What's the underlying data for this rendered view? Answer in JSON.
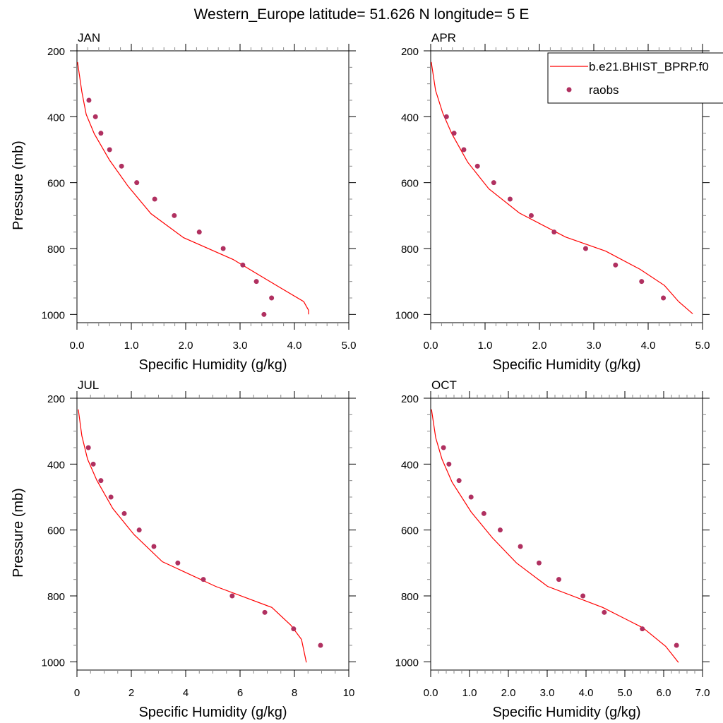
{
  "title": "Western_Europe  latitude= 51.626 N longitude= 5 E",
  "colors": {
    "model_line": "#ff0000",
    "obs_marker": "#b03060"
  },
  "legend": {
    "placement": "top-right",
    "entries": [
      {
        "label": "b.e21.BHIST_BPRP.f0",
        "style": "line"
      },
      {
        "label": "raobs",
        "style": "marker"
      }
    ]
  },
  "chart_data": [
    {
      "type": "line",
      "panel_label": "JAN",
      "xlabel": "Specific Humidity (g/kg)",
      "ylabel": "Pressure (mb)",
      "xlim": [
        0,
        5
      ],
      "ylim": [
        200,
        1025
      ],
      "y_inverted": true,
      "xticks": [
        "0.0",
        "1.0",
        "2.0",
        "3.0",
        "4.0",
        "5.0"
      ],
      "xtick_values": [
        0,
        1,
        2,
        3,
        4,
        5
      ],
      "xminor": 0.2,
      "yticks": [
        "200",
        "400",
        "600",
        "800",
        "1000"
      ],
      "ytick_values": [
        200,
        400,
        600,
        800,
        1000
      ],
      "yminor": 50,
      "series": [
        {
          "name": "b.e21.BHIST_BPRP.f0",
          "kind": "line",
          "x": [
            0.01,
            0.09,
            0.17,
            0.32,
            0.6,
            0.94,
            1.36,
            1.96,
            2.87,
            3.74,
            4.17,
            4.26,
            4.26
          ],
          "y": [
            234,
            324,
            393,
            452,
            532,
            611,
            694,
            767,
            833,
            919,
            961,
            987,
            1000
          ]
        },
        {
          "name": "raobs",
          "kind": "scatter",
          "x": [
            0.22,
            0.34,
            0.44,
            0.6,
            0.82,
            1.1,
            1.43,
            1.79,
            2.25,
            2.69,
            3.05,
            3.3,
            3.58,
            3.44
          ],
          "y": [
            350,
            400,
            450,
            500,
            550,
            600,
            650,
            700,
            750,
            800,
            850,
            900,
            950,
            1000
          ]
        }
      ]
    },
    {
      "type": "line",
      "panel_label": "APR",
      "xlabel": "Specific Humidity (g/kg)",
      "ylabel": "",
      "xlim": [
        0,
        5
      ],
      "ylim": [
        200,
        1025
      ],
      "y_inverted": true,
      "xticks": [
        "0.0",
        "1.0",
        "2.0",
        "3.0",
        "4.0",
        "5.0"
      ],
      "xtick_values": [
        0,
        1,
        2,
        3,
        4,
        5
      ],
      "xminor": 0.2,
      "yticks": [
        "200",
        "400",
        "600",
        "800",
        "1000"
      ],
      "ytick_values": [
        200,
        400,
        600,
        800,
        1000
      ],
      "yminor": 50,
      "series": [
        {
          "name": "b.e21.BHIST_BPRP.f0",
          "kind": "line",
          "x": [
            0.01,
            0.09,
            0.22,
            0.39,
            0.68,
            1.07,
            1.63,
            2.48,
            3.22,
            3.85,
            4.3,
            4.56,
            4.82
          ],
          "y": [
            234,
            320,
            388,
            452,
            538,
            619,
            692,
            765,
            808,
            863,
            912,
            961,
            998
          ]
        },
        {
          "name": "raobs",
          "kind": "scatter",
          "x": [
            0.29,
            0.43,
            0.61,
            0.86,
            1.16,
            1.46,
            1.85,
            2.27,
            2.85,
            3.4,
            3.88,
            4.28
          ],
          "y": [
            400,
            450,
            500,
            550,
            600,
            650,
            700,
            750,
            800,
            850,
            900,
            950
          ]
        }
      ]
    },
    {
      "type": "line",
      "panel_label": "JUL",
      "xlabel": "Specific Humidity (g/kg)",
      "ylabel": "Pressure (mb)",
      "xlim": [
        0,
        10
      ],
      "ylim": [
        200,
        1025
      ],
      "y_inverted": true,
      "xticks": [
        "0",
        "2",
        "4",
        "6",
        "8",
        "10"
      ],
      "xtick_values": [
        0,
        2,
        4,
        6,
        8,
        10
      ],
      "xminor": 0.5,
      "yticks": [
        "200",
        "400",
        "600",
        "800",
        "1000"
      ],
      "ytick_values": [
        200,
        400,
        600,
        800,
        1000
      ],
      "yminor": 50,
      "series": [
        {
          "name": "b.e21.BHIST_BPRP.f0",
          "kind": "line",
          "x": [
            0.05,
            0.18,
            0.39,
            0.73,
            1.32,
            2.1,
            3.14,
            5.1,
            7.17,
            7.87,
            8.26,
            8.44
          ],
          "y": [
            234,
            314,
            385,
            449,
            535,
            614,
            696,
            771,
            835,
            889,
            932,
            1002
          ]
        },
        {
          "name": "raobs",
          "kind": "scatter",
          "x": [
            0.42,
            0.6,
            0.88,
            1.25,
            1.74,
            2.29,
            2.83,
            3.71,
            4.65,
            5.71,
            6.91,
            7.97,
            8.96
          ],
          "y": [
            350,
            400,
            450,
            500,
            550,
            600,
            650,
            700,
            750,
            800,
            850,
            900,
            950
          ]
        }
      ]
    },
    {
      "type": "line",
      "panel_label": "OCT",
      "xlabel": "Specific Humidity (g/kg)",
      "ylabel": "",
      "xlim": [
        0,
        7
      ],
      "ylim": [
        200,
        1025
      ],
      "y_inverted": true,
      "xticks": [
        "0.0",
        "1.0",
        "2.0",
        "3.0",
        "4.0",
        "5.0",
        "6.0",
        "7.0"
      ],
      "xtick_values": [
        0,
        1,
        2,
        3,
        4,
        5,
        6,
        7
      ],
      "xminor": 0.2,
      "yticks": [
        "200",
        "400",
        "600",
        "800",
        "1000"
      ],
      "ytick_values": [
        200,
        400,
        600,
        800,
        1000
      ],
      "yminor": 50,
      "series": [
        {
          "name": "b.e21.BHIST_BPRP.f0",
          "kind": "line",
          "x": [
            0.02,
            0.13,
            0.29,
            0.55,
            1.04,
            1.59,
            2.21,
            3.01,
            4.43,
            5.47,
            6.05,
            6.38
          ],
          "y": [
            234,
            320,
            385,
            455,
            545,
            624,
            700,
            771,
            835,
            897,
            953,
            1002
          ]
        },
        {
          "name": "raobs",
          "kind": "scatter",
          "x": [
            0.33,
            0.47,
            0.73,
            1.04,
            1.37,
            1.79,
            2.31,
            2.79,
            3.3,
            3.92,
            4.47,
            5.45,
            6.33
          ],
          "y": [
            350,
            400,
            450,
            500,
            550,
            600,
            650,
            700,
            750,
            800,
            850,
            900,
            950
          ]
        }
      ]
    }
  ]
}
